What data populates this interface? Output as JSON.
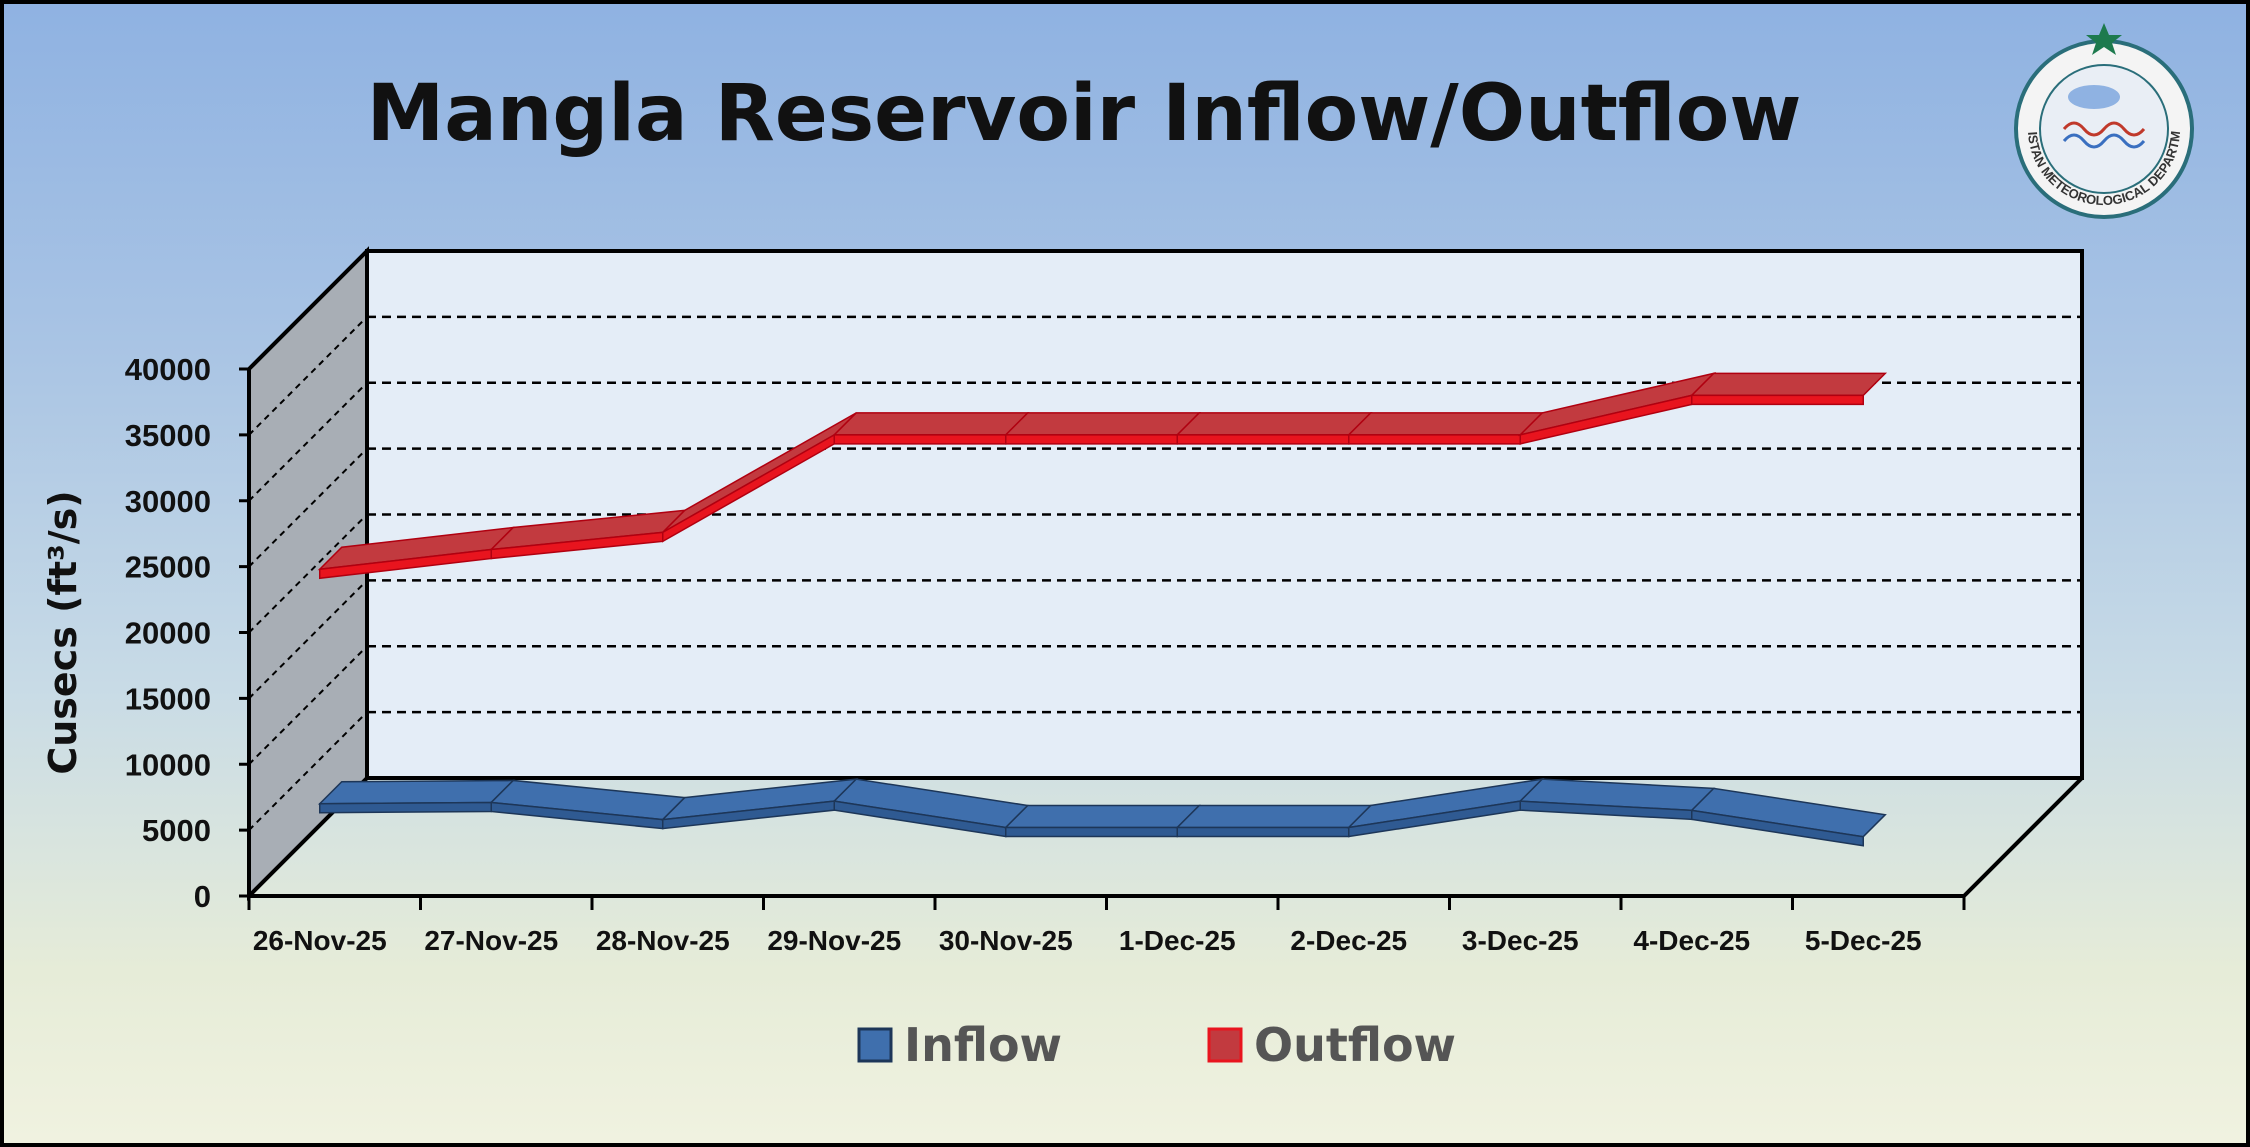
{
  "chart_data": {
    "type": "line",
    "title": "Mangla Reservoir Inflow/Outflow",
    "xlabel": "",
    "ylabel": "Cusecs (ft³/s)",
    "ylim": [
      0,
      40000
    ],
    "yticks": [
      0,
      5000,
      10000,
      15000,
      20000,
      25000,
      30000,
      35000,
      40000
    ],
    "grid": true,
    "legend": "bottom",
    "categories": [
      "26-Nov-25",
      "27-Nov-25",
      "28-Nov-25",
      "29-Nov-25",
      "30-Nov-25",
      "1-Dec-25",
      "2-Dec-25",
      "3-Dec-25",
      "4-Dec-25",
      "5-Dec-25"
    ],
    "series": [
      {
        "name": "Inflow",
        "color": "#3f6fad",
        "values": [
          7000,
          7100,
          5800,
          7200,
          5200,
          5200,
          5200,
          7200,
          6500,
          4500
        ]
      },
      {
        "name": "Outflow",
        "color": "#e8141e",
        "values": [
          24800,
          26300,
          27600,
          35000,
          35000,
          35000,
          35000,
          35000,
          38000,
          38000
        ]
      }
    ]
  },
  "logo": {
    "text": "PAKISTAN METEOROLOGICAL DEPARTMENT",
    "accent": "#1d7a4e"
  }
}
